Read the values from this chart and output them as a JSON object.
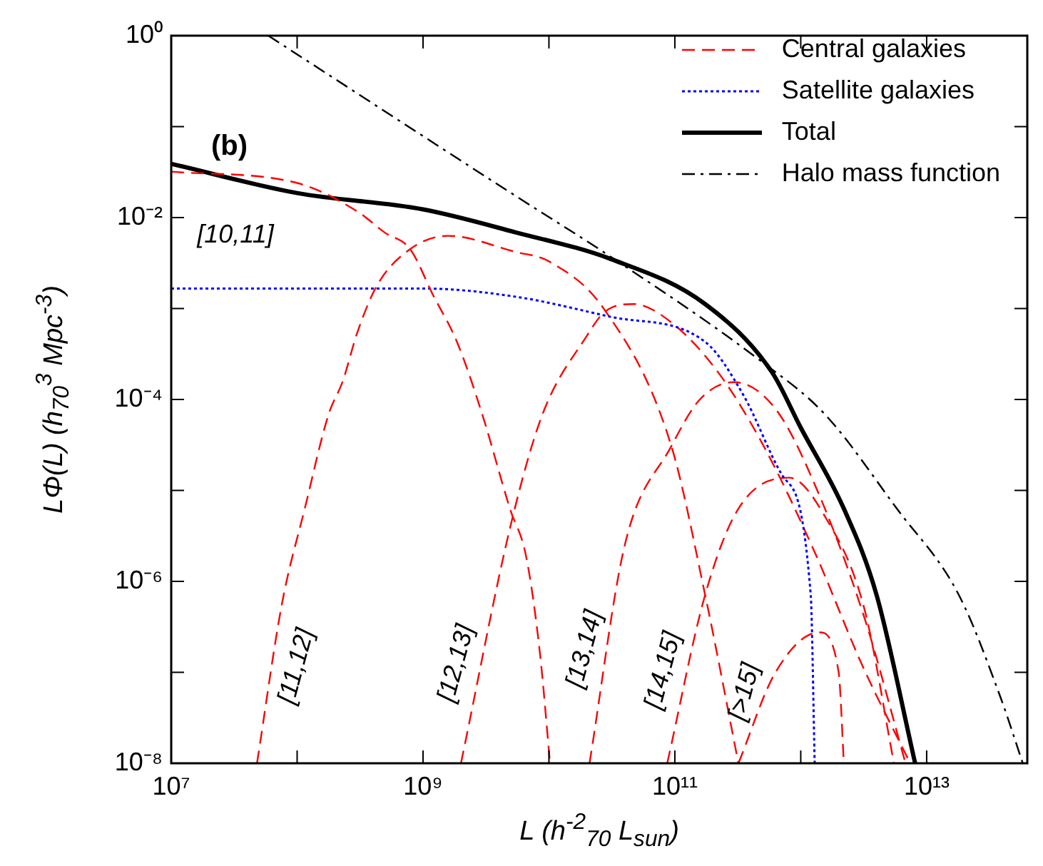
{
  "chart_data": {
    "type": "line",
    "log": "xy",
    "grid": false,
    "marker": "none",
    "legend": "top right",
    "xlabel": "L (h$^{-2}$$_{70}$ L$_{sun}$)",
    "ylabel": "LΦ(L) (h$_{70}$$^{3}$ Mpc$^{-3}$)",
    "xlim": [
      10000000,
      63000000000000
    ],
    "ylim": [
      1e-08,
      1
    ],
    "xticks": [
      {
        "value": 10000000,
        "label": "10⁷"
      },
      {
        "value": 100000000,
        "label": null
      },
      {
        "value": 1000000000,
        "label": "10⁹"
      },
      {
        "value": 10000000000,
        "label": null
      },
      {
        "value": 100000000000,
        "label": "10¹¹"
      },
      {
        "value": 1000000000000,
        "label": null
      },
      {
        "value": 10000000000000,
        "label": "10¹³"
      }
    ],
    "yticks": [
      {
        "value": 1,
        "label": "10⁰"
      },
      {
        "value": 0.1,
        "label": null
      },
      {
        "value": 0.01,
        "label": "10⁻²"
      },
      {
        "value": 0.001,
        "label": null
      },
      {
        "value": 0.0001,
        "label": "10⁻⁴"
      },
      {
        "value": 1e-05,
        "label": null
      },
      {
        "value": 1e-06,
        "label": "10⁻⁶"
      },
      {
        "value": 1e-07,
        "label": null
      },
      {
        "value": 1e-08,
        "label": "10⁻⁸"
      }
    ],
    "series": [
      {
        "name": "Central galaxies",
        "line_style": "dashed",
        "color": "#ff0000",
        "x": [
          10000000.0,
          100000000.0,
          300000000.0,
          500000000.0,
          790000000.0,
          1200000000.0,
          1860000000.0,
          2950000000.0,
          4900000000.0,
          6600000000.0,
          8500000000.0,
          10200000000.0
        ],
        "values": [
          0.032,
          0.024,
          0.0117,
          0.0068,
          0.0045,
          0.00141,
          0.00043,
          6.9e-05,
          6.3e-06,
          1.86e-06,
          1.58e-07,
          1e-08
        ]
      },
      {
        "name": "Satellite galaxies",
        "line_style": "dotted",
        "color": "#0000ff",
        "x": [
          10000000.0,
          1000000000.0,
          5400000000.0,
          31000000000.0,
          174000000000.0,
          350000000000.0,
          710000000000.0,
          1200000000000.0,
          1290000000000.0
        ],
        "values": [
          0.00166,
          0.00166,
          0.00135,
          0.00081,
          0.00043,
          0.000112,
          1.48e-05,
          7.1e-07,
          1e-08
        ]
      },
      {
        "name": "Total",
        "line_style": "solid",
        "color": "#000000",
        "x": [
          10000000.0,
          100000000.0,
          1000000000.0,
          5400000000.0,
          31000000000.0,
          174000000000.0,
          590000000000.0,
          1000000000000.0,
          2200000000000.0,
          4000000000000.0,
          8100000000000.0
        ],
        "values": [
          0.039,
          0.0186,
          0.0123,
          0.0069,
          0.0035,
          0.00112,
          0.0002,
          4.9e-05,
          6.3e-06,
          7.1e-07,
          1e-08
        ]
      },
      {
        "name": "Halo mass function",
        "line_style": "dashdot",
        "color": "#000000",
        "x": [
          59000000.0,
          5400000000.0,
          31000000000.0,
          490000000000.0,
          1550000000000.0,
          5800000000000.0,
          18000000000000.0,
          39000000000000.0,
          58000000000000.0
        ],
        "values": [
          1,
          0.0174,
          0.0037,
          0.00026,
          6.9e-05,
          6.3e-06,
          7.1e-07,
          5.1e-08,
          1e-08
        ]
      },
      {
        "line_style": "dashed",
        "color": "#ff0000",
        "x": [
          48000000.0,
          76000000.0,
          115000000.0,
          178000000.0,
          230000000.0,
          300000000.0,
          430000000.0,
          790000000.0,
          1580000000.0,
          5400000000.0,
          10000000000.0,
          27500000000.0,
          93000000000.0,
          174000000000.0,
          320000000000.0
        ],
        "values": [
          1e-08,
          5.8e-07,
          6.3e-06,
          6.9e-05,
          0.000158,
          0.00054,
          0.00178,
          0.0045,
          0.0063,
          0.0042,
          0.0033,
          0.00098,
          3.2e-05,
          7.1e-07,
          1e-08
        ]
      },
      {
        "line_style": "dashed",
        "color": "#ff0000",
        "x": [
          2000000000.0,
          5000000000.0,
          8900000000.0,
          20000000000.0,
          27500000000.0,
          47000000000.0,
          93000000000.0,
          220000000000.0,
          500000000000.0,
          1290000000000.0,
          3100000000000.0,
          7400000000000.0
        ],
        "values": [
          1e-08,
          4.3e-06,
          6.9e-05,
          0.0005,
          0.00091,
          0.00112,
          0.00071,
          0.0002,
          3.2e-05,
          2.1e-06,
          1.17e-07,
          1e-08
        ]
      },
      {
        "line_style": "dashed",
        "color": "#ff0000",
        "x": [
          21000000000.0,
          40000000000.0,
          93000000000.0,
          158000000000.0,
          295000000000.0,
          630000000000.0,
          1260000000000.0,
          3200000000000.0,
          6800000000000.0
        ],
        "values": [
          1e-08,
          2.5e-06,
          3e-05,
          0.0001,
          0.000155,
          7.9e-05,
          1.26e-05,
          4e-07,
          1e-08
        ]
      },
      {
        "line_style": "dashed",
        "color": "#ff0000",
        "x": [
          87000000000.0,
          174000000000.0,
          320000000000.0,
          810000000000.0,
          1580000000000.0,
          3200000000000.0,
          5500000000000.0
        ],
        "values": [
          1e-08,
          7.1e-07,
          6.3e-06,
          1.38e-05,
          5e-06,
          5e-07,
          1e-08
        ]
      },
      {
        "line_style": "dashed",
        "color": "#ff0000",
        "x": [
          320000000000.0,
          630000000000.0,
          1410000000000.0,
          2000000000000.0,
          2200000000000.0
        ],
        "values": [
          1e-08,
          1e-07,
          2.75e-07,
          1e-07,
          1e-08
        ]
      }
    ],
    "annotations": [
      "(b)",
      "[10,11]",
      "[11,12]",
      "[12,13]",
      "[13,14]",
      "[14,15]",
      "[>15]"
    ]
  }
}
